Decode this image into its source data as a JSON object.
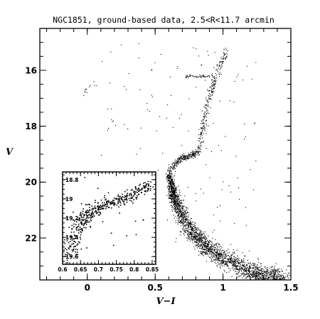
{
  "chart_data": [
    {
      "type": "scatter",
      "title": "NGC1851, ground-based data, 2.5<R<11.7 arcmin",
      "xlabel": "V−I",
      "ylabel": "V",
      "xlim": [
        -0.35,
        1.5
      ],
      "ylim": [
        23.5,
        14.5
      ],
      "y_inverted": true,
      "x_ticks": [
        0,
        0.5,
        1,
        1.5
      ],
      "x_tick_labels": [
        "0",
        "0.5",
        "1",
        "1.5"
      ],
      "y_ticks": [
        16,
        18,
        20,
        22
      ],
      "y_tick_labels": [
        "16",
        "18",
        "20",
        "22"
      ],
      "grid": false,
      "point_color": "#000000",
      "features": {
        "main_sequence_turnoff": {
          "x": 0.6,
          "y": 19.7
        },
        "subgiant_branch": [
          [
            0.6,
            19.6
          ],
          [
            0.68,
            19.15
          ],
          [
            0.76,
            19.05
          ],
          [
            0.82,
            18.9
          ]
        ],
        "red_giant_branch": [
          [
            0.82,
            18.9
          ],
          [
            0.87,
            17.5
          ],
          [
            0.93,
            16.4
          ],
          [
            1.02,
            15.3
          ]
        ],
        "red_horizontal_branch": {
          "x_range": [
            0.72,
            0.92
          ],
          "y": 16.2
        },
        "blue_horizontal_branch": [
          [
            -0.05,
            16.95
          ],
          [
            0.02,
            16.6
          ],
          [
            0.08,
            16.35
          ]
        ],
        "main_sequence": [
          [
            0.6,
            19.7
          ],
          [
            0.64,
            20.6
          ],
          [
            0.74,
            21.6
          ],
          [
            0.92,
            22.5
          ],
          [
            1.2,
            23.2
          ],
          [
            1.45,
            23.5
          ]
        ]
      }
    },
    {
      "type": "scatter",
      "title": "",
      "xlabel": "",
      "ylabel": "",
      "xlim": [
        0.6,
        0.86
      ],
      "ylim": [
        19.68,
        18.72
      ],
      "y_inverted": true,
      "x_ticks": [
        0.6,
        0.65,
        0.7,
        0.75,
        0.8,
        0.85
      ],
      "x_tick_labels": [
        "0.6",
        "0.65",
        "0.7",
        "0.75",
        "0.8",
        "0.85"
      ],
      "y_ticks": [
        18.8,
        19,
        19.2,
        19.4,
        19.6
      ],
      "y_tick_labels": [
        "18.8",
        "19",
        "19.2",
        "19.4",
        "19.6"
      ],
      "grid": false,
      "point_color": "#000000",
      "features": {
        "subgiant_branch_zoom": [
          [
            0.62,
            19.6
          ],
          [
            0.64,
            19.3
          ],
          [
            0.67,
            19.15
          ],
          [
            0.72,
            19.05
          ],
          [
            0.78,
            18.98
          ],
          [
            0.84,
            18.85
          ]
        ]
      }
    }
  ]
}
